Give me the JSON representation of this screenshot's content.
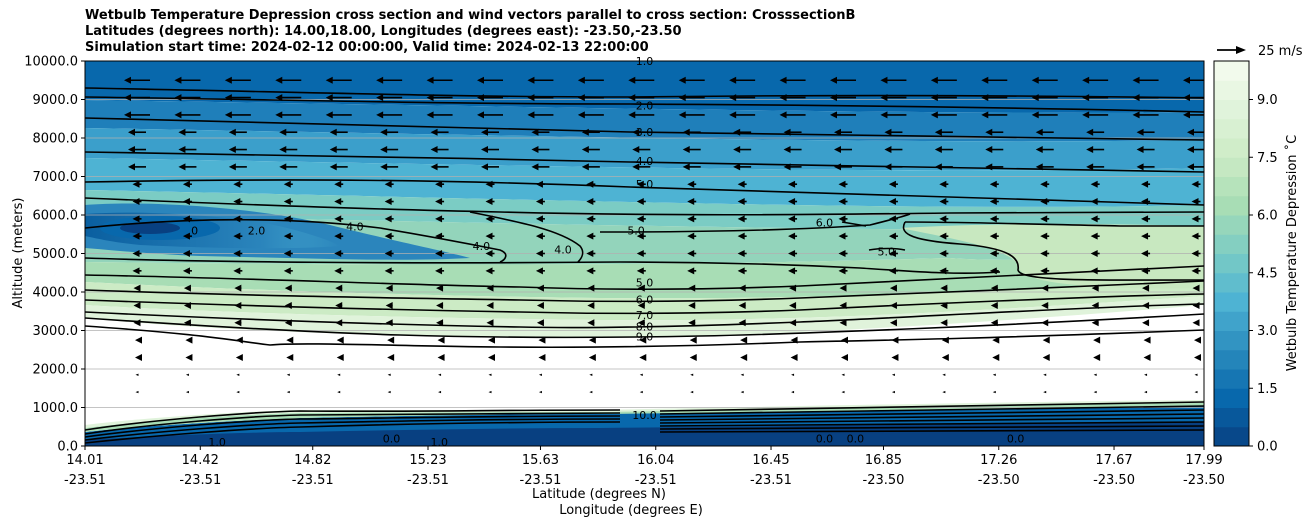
{
  "chart_data": {
    "type": "contourf",
    "title": [
      "Wetbulb Temperature Depression cross section and wind vectors parallel to cross section: CrosssectionB",
      "Latitudes (degrees north): 14.00,18.00, Longitudes (degrees east): -23.50,-23.50",
      "Simulation start time: 2024-02-12 00:00:00, Valid time: 2024-02-13 22:00:00"
    ],
    "xlabel_lat": "Latitude (degrees N)",
    "xlabel_lon": "Longitude (degrees E)",
    "ylabel": "Altitude (meters)",
    "ylim": [
      0,
      10000
    ],
    "yticks": [
      "0.0",
      "1000.0",
      "2000.0",
      "3000.0",
      "4000.0",
      "5000.0",
      "6000.0",
      "7000.0",
      "8000.0",
      "9000.0",
      "10000.0"
    ],
    "xticks_lat": [
      "14.01",
      "14.42",
      "14.82",
      "15.23",
      "15.63",
      "16.04",
      "16.45",
      "16.85",
      "17.26",
      "17.67",
      "17.99"
    ],
    "xticks_lon": [
      "-23.51",
      "-23.51",
      "-23.51",
      "-23.51",
      "-23.51",
      "-23.51",
      "-23.51",
      "-23.50",
      "-23.50",
      "-23.50",
      "-23.50"
    ],
    "xlim": [
      14.01,
      17.99
    ],
    "grid": "horizontal",
    "colorbar": {
      "label": "Wetbulb Temperature Depression ˚C",
      "range": [
        0,
        10
      ],
      "ticks": [
        "0.0",
        "1.5",
        "3.0",
        "4.5",
        "6.0",
        "7.5",
        "9.0"
      ],
      "colors": [
        "#084081",
        "#0868ac",
        "#2b8cbe",
        "#4eb3d3",
        "#7bccc4",
        "#a8ddb5",
        "#ccebc5",
        "#e0f3db",
        "#f7fcf0"
      ]
    },
    "vector_key": "25 m/s",
    "contour_labels": [
      {
        "text": "1.0",
        "lat": 16.0,
        "alt": 10000
      },
      {
        "text": "2.0",
        "lat": 16.0,
        "alt": 8850
      },
      {
        "text": "3.0",
        "lat": 16.0,
        "alt": 8150
      },
      {
        "text": "4.0",
        "lat": 16.0,
        "alt": 7400
      },
      {
        "text": "5.0",
        "lat": 16.0,
        "alt": 6800
      },
      {
        "text": "5.0",
        "lat": 15.97,
        "alt": 5600
      },
      {
        "text": "5.0",
        "lat": 16.0,
        "alt": 4250
      },
      {
        "text": "6.0",
        "lat": 16.0,
        "alt": 3800
      },
      {
        "text": "7.0",
        "lat": 16.0,
        "alt": 3400
      },
      {
        "text": "8.0",
        "lat": 16.0,
        "alt": 3100
      },
      {
        "text": "9.0",
        "lat": 16.0,
        "alt": 2850
      },
      {
        "text": "10.0",
        "lat": 16.0,
        "alt": 800
      },
      {
        "text": "4.0",
        "lat": 14.97,
        "alt": 5700
      },
      {
        "text": "4.0",
        "lat": 15.42,
        "alt": 5200
      },
      {
        "text": "4.0",
        "lat": 15.71,
        "alt": 5100
      },
      {
        "text": "2.0",
        "lat": 14.62,
        "alt": 5600
      },
      {
        "text": "0",
        "lat": 14.4,
        "alt": 5600
      },
      {
        "text": "6.0",
        "lat": 16.64,
        "alt": 5800
      },
      {
        "text": "5.0",
        "lat": 16.86,
        "alt": 5050
      },
      {
        "text": "1.0",
        "lat": 14.48,
        "alt": 100
      },
      {
        "text": "1.0",
        "lat": 15.27,
        "alt": 100
      },
      {
        "text": "0.0",
        "lat": 15.1,
        "alt": 200
      },
      {
        "text": "0.0",
        "lat": 16.64,
        "alt": 200
      },
      {
        "text": "0.0",
        "lat": 16.75,
        "alt": 200
      },
      {
        "text": "0.0",
        "lat": 17.32,
        "alt": 200
      }
    ]
  }
}
